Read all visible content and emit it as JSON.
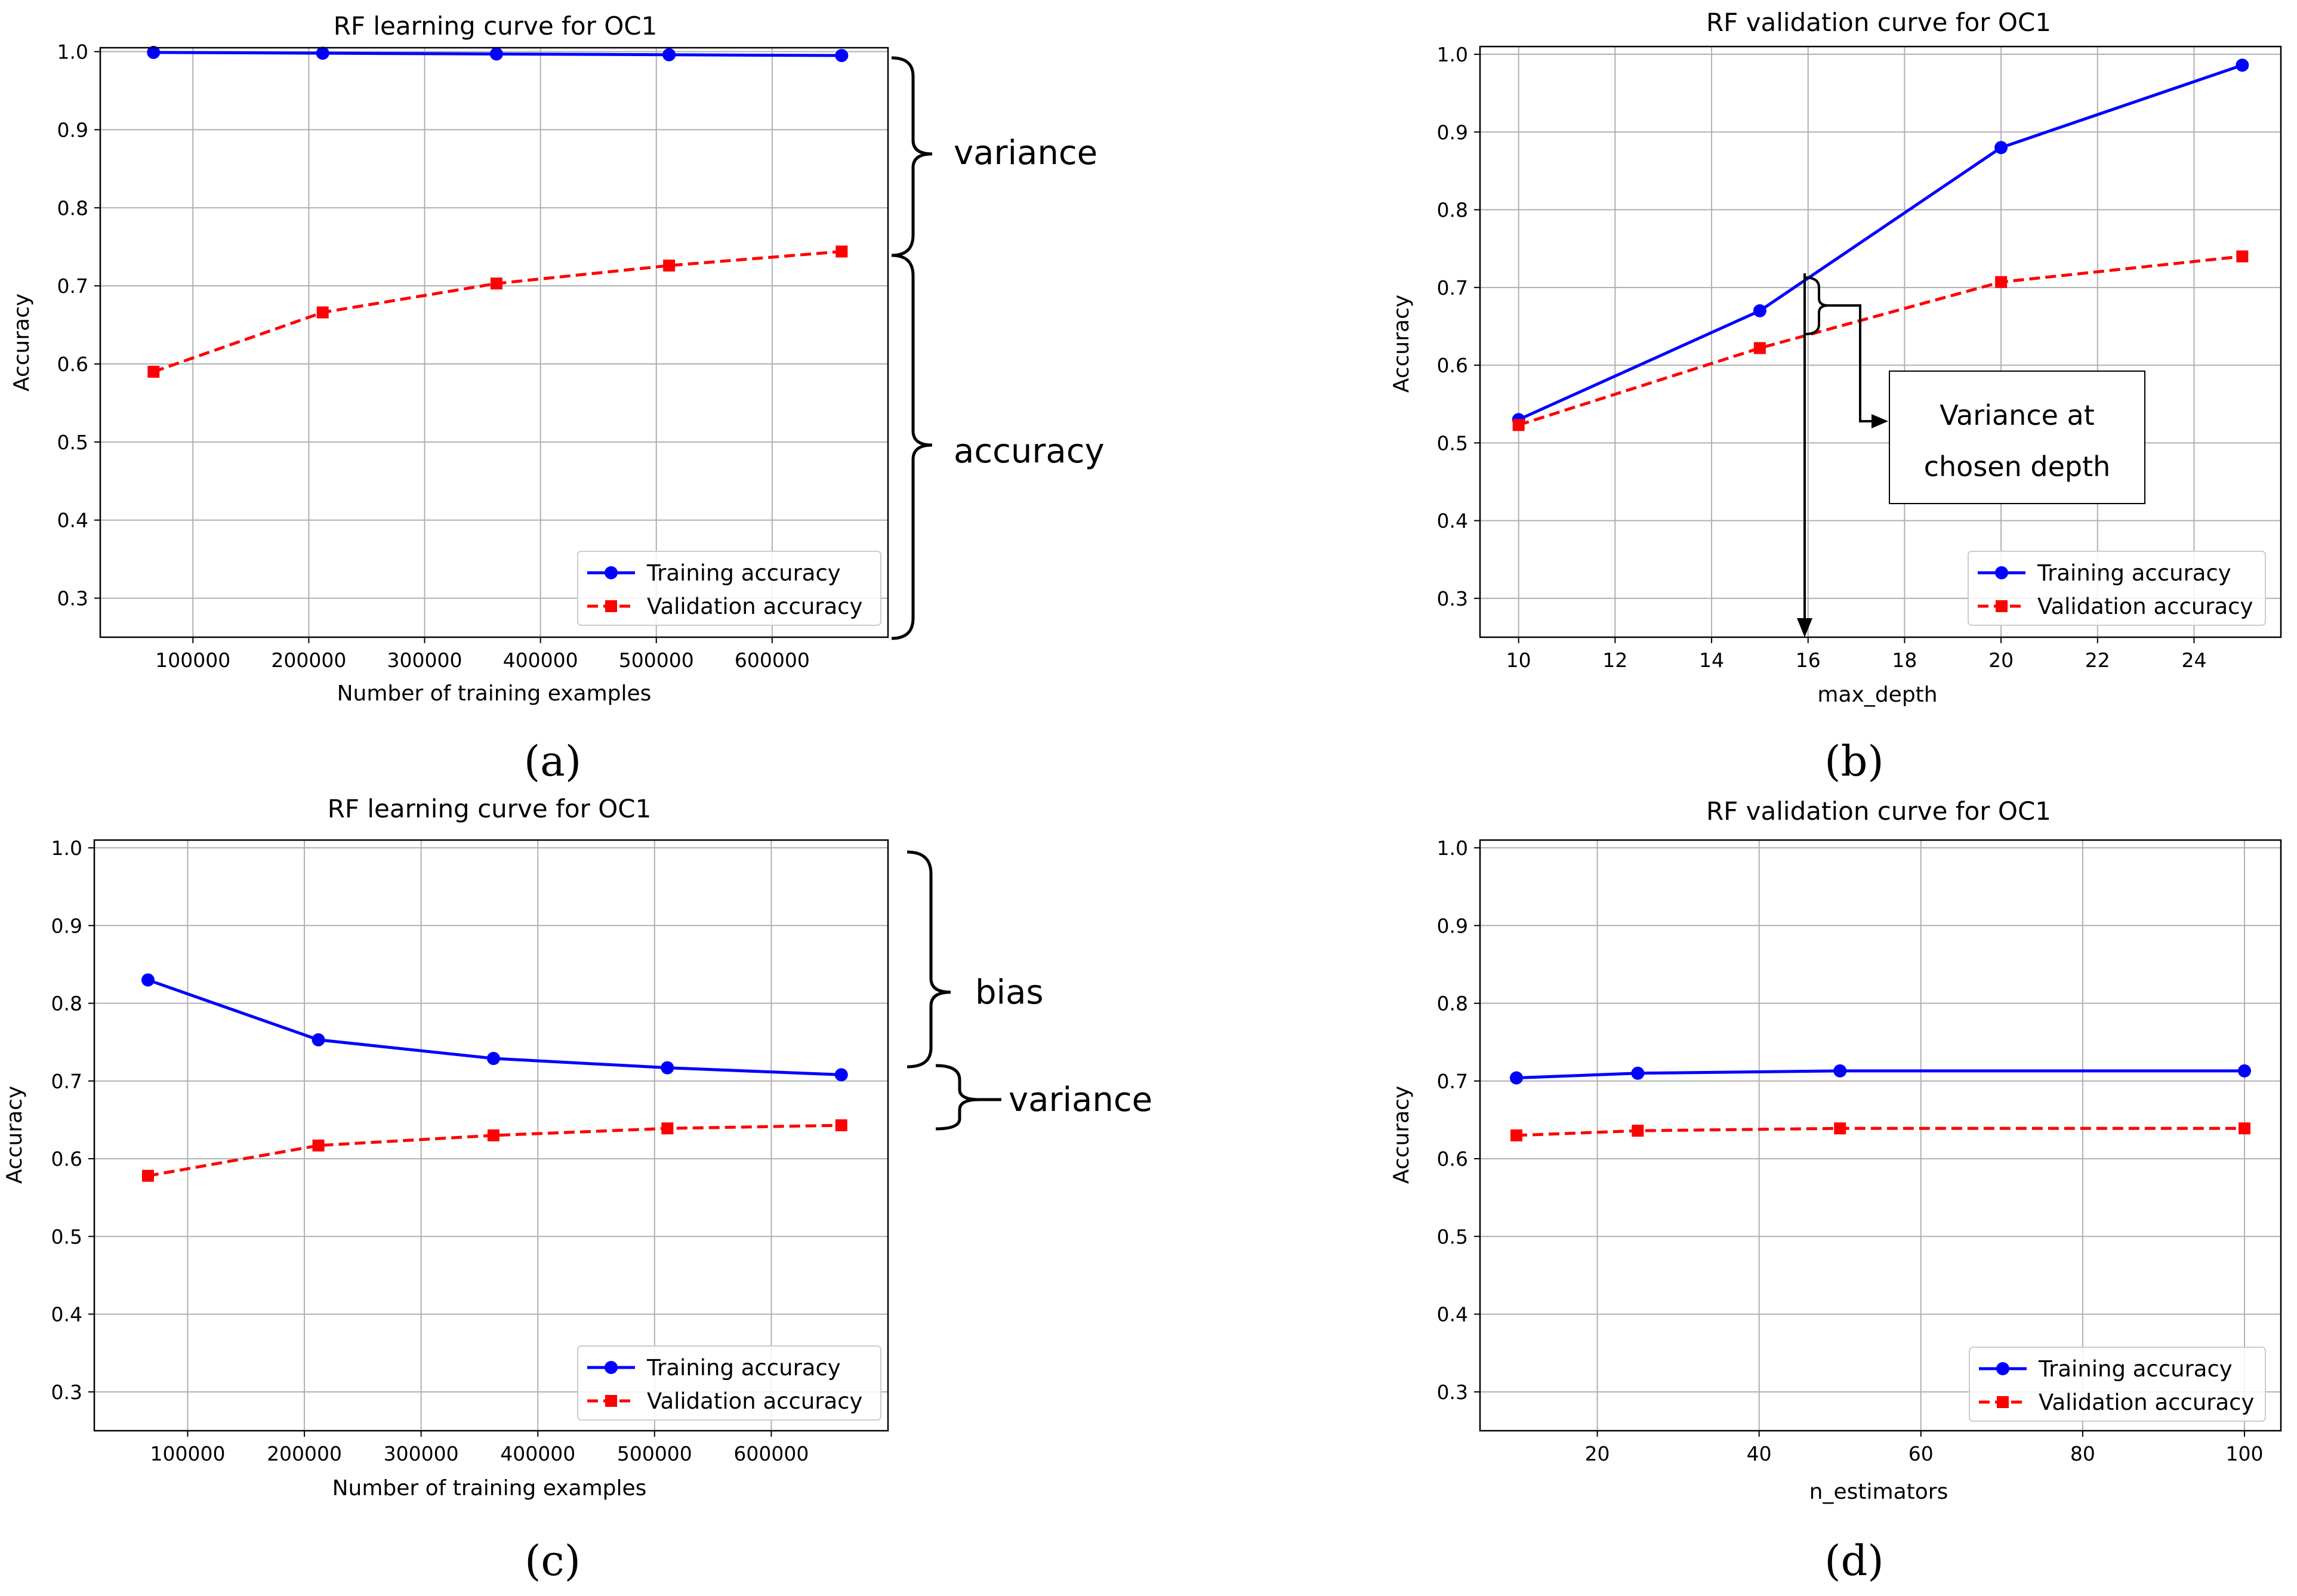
{
  "figure": {
    "colors": {
      "training": "#0000ff",
      "validation": "#ff0000",
      "grid": "#b0b0b0",
      "axes": "#000000"
    }
  },
  "chart_data": [
    {
      "type": "line",
      "panel": "(a)",
      "title": "RF learning curve for OC1",
      "xlabel": "Number of training examples",
      "ylabel": "Accuracy",
      "xlim": [
        20000,
        700000
      ],
      "ylim": [
        0.25,
        1.005
      ],
      "xticks": [
        100000,
        200000,
        300000,
        400000,
        500000,
        600000
      ],
      "xtick_labels": [
        "100000",
        "200000",
        "300000",
        "400000",
        "500000",
        "600000"
      ],
      "yticks": [
        0.3,
        0.4,
        0.5,
        0.6,
        0.7,
        0.8,
        0.9,
        1.0
      ],
      "ytick_labels": [
        "0.3",
        "0.4",
        "0.5",
        "0.6",
        "0.7",
        "0.8",
        "0.9",
        "1.0"
      ],
      "grid": true,
      "legend_position": "bottom-right",
      "x": [
        66000,
        212000,
        362000,
        511000,
        660000
      ],
      "series": [
        {
          "name": "Training accuracy",
          "style": "solid",
          "marker": "circle",
          "values": [
            0.999,
            0.998,
            0.997,
            0.996,
            0.995
          ]
        },
        {
          "name": "Validation accuracy",
          "style": "dashed",
          "marker": "square",
          "values": [
            0.59,
            0.666,
            0.703,
            0.726,
            0.744
          ]
        }
      ]
    },
    {
      "type": "line",
      "panel": "(b)",
      "title": "RF validation curve for OC1",
      "xlabel": "max_depth",
      "ylabel": "Accuracy",
      "xlim": [
        9.2,
        25.8
      ],
      "ylim": [
        0.25,
        1.01
      ],
      "xticks": [
        10,
        12,
        14,
        16,
        18,
        20,
        22,
        24
      ],
      "xtick_labels": [
        "10",
        "12",
        "14",
        "16",
        "18",
        "20",
        "22",
        "24"
      ],
      "yticks": [
        0.3,
        0.4,
        0.5,
        0.6,
        0.7,
        0.8,
        0.9,
        1.0
      ],
      "ytick_labels": [
        "0.3",
        "0.4",
        "0.5",
        "0.6",
        "0.7",
        "0.8",
        "0.9",
        "1.0"
      ],
      "grid": true,
      "legend_position": "bottom-right",
      "x": [
        10,
        15,
        20,
        25
      ],
      "series": [
        {
          "name": "Training accuracy",
          "style": "solid",
          "marker": "circle",
          "values": [
            0.53,
            0.67,
            0.88,
            0.986
          ]
        },
        {
          "name": "Validation accuracy",
          "style": "dashed",
          "marker": "square",
          "values": [
            0.523,
            0.622,
            0.707,
            0.74
          ]
        }
      ]
    },
    {
      "type": "line",
      "panel": "(c)",
      "title": "RF learning curve for OC1",
      "xlabel": "Number of training examples",
      "ylabel": "Accuracy",
      "xlim": [
        20000,
        700000
      ],
      "ylim": [
        0.25,
        1.01
      ],
      "xticks": [
        100000,
        200000,
        300000,
        400000,
        500000,
        600000
      ],
      "xtick_labels": [
        "100000",
        "200000",
        "300000",
        "400000",
        "500000",
        "600000"
      ],
      "yticks": [
        0.3,
        0.4,
        0.5,
        0.6,
        0.7,
        0.8,
        0.9,
        1.0
      ],
      "ytick_labels": [
        "0.3",
        "0.4",
        "0.5",
        "0.6",
        "0.7",
        "0.8",
        "0.9",
        "1.0"
      ],
      "grid": true,
      "legend_position": "bottom-right",
      "x": [
        66000,
        212000,
        362000,
        511000,
        660000
      ],
      "series": [
        {
          "name": "Training accuracy",
          "style": "solid",
          "marker": "circle",
          "values": [
            0.83,
            0.753,
            0.729,
            0.717,
            0.708
          ]
        },
        {
          "name": "Validation accuracy",
          "style": "dashed",
          "marker": "square",
          "values": [
            0.578,
            0.617,
            0.63,
            0.639,
            0.643
          ]
        }
      ]
    },
    {
      "type": "line",
      "panel": "(d)",
      "title": "RF validation curve for OC1",
      "xlabel": "n_estimators",
      "ylabel": "Accuracy",
      "xlim": [
        5.5,
        104.5
      ],
      "ylim": [
        0.25,
        1.01
      ],
      "xticks": [
        20,
        40,
        60,
        80,
        100
      ],
      "xtick_labels": [
        "20",
        "40",
        "60",
        "80",
        "100"
      ],
      "yticks": [
        0.3,
        0.4,
        0.5,
        0.6,
        0.7,
        0.8,
        0.9,
        1.0
      ],
      "ytick_labels": [
        "0.3",
        "0.4",
        "0.5",
        "0.6",
        "0.7",
        "0.8",
        "0.9",
        "1.0"
      ],
      "grid": true,
      "legend_position": "bottom-right",
      "x": [
        10,
        25,
        50,
        100
      ],
      "series": [
        {
          "name": "Training accuracy",
          "style": "solid",
          "marker": "circle",
          "values": [
            0.704,
            0.71,
            0.713,
            0.713
          ]
        },
        {
          "name": "Validation accuracy",
          "style": "dashed",
          "marker": "square",
          "values": [
            0.63,
            0.636,
            0.639,
            0.639
          ]
        }
      ]
    }
  ],
  "annotations": {
    "a_variance": "variance",
    "a_accuracy": "accuracy",
    "b_box_line1": "Variance at",
    "b_box_line2": "chosen depth",
    "c_bias": "bias",
    "c_variance": "variance"
  }
}
